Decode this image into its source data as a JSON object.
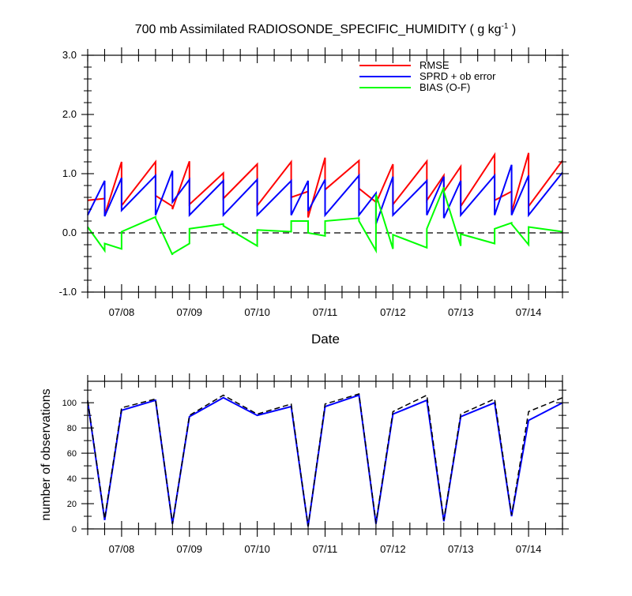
{
  "chart_data": [
    {
      "type": "line",
      "title": "700 mb Assimilated RADIOSONDE_SPECIFIC_HUMIDITY ( g kg",
      "title_sup": "-1",
      "title_end": " )",
      "xlabel": "Date",
      "ylabel": "",
      "xlim": [
        "07/07 12:00",
        "07/14 12:00"
      ],
      "ylim": [
        -1.0,
        3.0
      ],
      "yticks": [
        "-1.0",
        "0.0",
        "1.0",
        "2.0",
        "3.0"
      ],
      "xticks": [
        "07/08",
        "07/09",
        "07/10",
        "07/11",
        "07/12",
        "07/13",
        "07/14"
      ],
      "zero_line": "dashed",
      "legend_position": "top-right",
      "series": [
        {
          "name": "RMSE",
          "color": "#ff0000",
          "points": [
            [
              "07/07 12:00",
              0.55
            ],
            [
              "07/07 18:00",
              0.58
            ],
            [
              "07/07 18:00",
              0.3
            ],
            [
              "07/08 00:00",
              1.2
            ],
            [
              "07/08 00:00",
              0.46
            ],
            [
              "07/08 12:00",
              1.2
            ],
            [
              "07/08 12:00",
              0.63
            ],
            [
              "07/08 18:00",
              0.45
            ],
            [
              "07/08 18:00",
              0.4
            ],
            [
              "07/09 00:00",
              1.21
            ],
            [
              "07/09 00:00",
              0.48
            ],
            [
              "07/09 12:00",
              1.01
            ],
            [
              "07/09 12:00",
              0.58
            ],
            [
              "07/10 00:00",
              1.16
            ],
            [
              "07/10 00:00",
              0.46
            ],
            [
              "07/10 12:00",
              1.2
            ],
            [
              "07/10 12:00",
              0.6
            ],
            [
              "07/10 18:00",
              0.7
            ],
            [
              "07/10 18:00",
              0.26
            ],
            [
              "07/11 00:00",
              1.27
            ],
            [
              "07/11 00:00",
              0.73
            ],
            [
              "07/11 12:00",
              1.22
            ],
            [
              "07/11 12:00",
              0.75
            ],
            [
              "07/11 18:00",
              0.52
            ],
            [
              "07/11 18:00",
              0.5
            ],
            [
              "07/12 00:00",
              1.16
            ],
            [
              "07/12 00:00",
              0.48
            ],
            [
              "07/12 12:00",
              1.21
            ],
            [
              "07/12 12:00",
              0.55
            ],
            [
              "07/12 18:00",
              0.97
            ],
            [
              "07/12 18:00",
              0.7
            ],
            [
              "07/13 00:00",
              1.12
            ],
            [
              "07/13 00:00",
              0.45
            ],
            [
              "07/13 12:00",
              1.32
            ],
            [
              "07/13 12:00",
              0.55
            ],
            [
              "07/13 18:00",
              0.7
            ],
            [
              "07/13 18:00",
              0.35
            ],
            [
              "07/14 00:00",
              1.35
            ],
            [
              "07/14 00:00",
              0.45
            ],
            [
              "07/14 12:00",
              1.22
            ]
          ]
        },
        {
          "name": "SPRD + ob error",
          "color": "#0000ff",
          "points": [
            [
              "07/07 12:00",
              0.3
            ],
            [
              "07/07 18:00",
              0.88
            ],
            [
              "07/07 18:00",
              0.28
            ],
            [
              "07/08 00:00",
              0.93
            ],
            [
              "07/08 00:00",
              0.38
            ],
            [
              "07/08 12:00",
              0.97
            ],
            [
              "07/08 12:00",
              0.3
            ],
            [
              "07/08 18:00",
              1.05
            ],
            [
              "07/08 18:00",
              0.52
            ],
            [
              "07/09 00:00",
              0.9
            ],
            [
              "07/09 00:00",
              0.3
            ],
            [
              "07/09 12:00",
              0.88
            ],
            [
              "07/09 12:00",
              0.3
            ],
            [
              "07/10 00:00",
              0.9
            ],
            [
              "07/10 00:00",
              0.3
            ],
            [
              "07/10 12:00",
              0.88
            ],
            [
              "07/10 12:00",
              0.3
            ],
            [
              "07/10 18:00",
              0.88
            ],
            [
              "07/10 18:00",
              0.37
            ],
            [
              "07/11 00:00",
              0.9
            ],
            [
              "07/11 00:00",
              0.3
            ],
            [
              "07/11 12:00",
              0.97
            ],
            [
              "07/11 12:00",
              0.3
            ],
            [
              "07/11 18:00",
              0.67
            ],
            [
              "07/11 18:00",
              0.15
            ],
            [
              "07/12 00:00",
              0.95
            ],
            [
              "07/12 00:00",
              0.3
            ],
            [
              "07/12 12:00",
              0.88
            ],
            [
              "07/12 12:00",
              0.3
            ],
            [
              "07/12 18:00",
              0.95
            ],
            [
              "07/12 18:00",
              0.25
            ],
            [
              "07/13 00:00",
              0.88
            ],
            [
              "07/13 00:00",
              0.3
            ],
            [
              "07/13 12:00",
              0.97
            ],
            [
              "07/13 12:00",
              0.3
            ],
            [
              "07/13 18:00",
              1.15
            ],
            [
              "07/13 18:00",
              0.3
            ],
            [
              "07/14 00:00",
              0.97
            ],
            [
              "07/14 00:00",
              0.3
            ],
            [
              "07/14 12:00",
              1.02
            ]
          ]
        },
        {
          "name": "BIAS (O-F)",
          "color": "#00ff00",
          "points": [
            [
              "07/07 12:00",
              0.1
            ],
            [
              "07/07 18:00",
              -0.3
            ],
            [
              "07/07 18:00",
              -0.18
            ],
            [
              "07/08 00:00",
              -0.27
            ],
            [
              "07/08 00:00",
              0.02
            ],
            [
              "07/08 12:00",
              0.27
            ],
            [
              "07/08 12:00",
              0.25
            ],
            [
              "07/08 18:00",
              -0.37
            ],
            [
              "07/08 18:00",
              -0.35
            ],
            [
              "07/09 00:00",
              -0.18
            ],
            [
              "07/09 00:00",
              0.07
            ],
            [
              "07/09 12:00",
              0.15
            ],
            [
              "07/09 12:00",
              0.12
            ],
            [
              "07/10 00:00",
              -0.22
            ],
            [
              "07/10 00:00",
              0.05
            ],
            [
              "07/10 12:00",
              0.02
            ],
            [
              "07/10 12:00",
              0.2
            ],
            [
              "07/10 18:00",
              0.2
            ],
            [
              "07/10 18:00",
              0.0
            ],
            [
              "07/11 00:00",
              -0.05
            ],
            [
              "07/11 00:00",
              0.2
            ],
            [
              "07/11 12:00",
              0.25
            ],
            [
              "07/11 12:00",
              0.2
            ],
            [
              "07/11 18:00",
              -0.3
            ],
            [
              "07/11 18:00",
              0.65
            ],
            [
              "07/12 00:00",
              -0.27
            ],
            [
              "07/12 00:00",
              -0.03
            ],
            [
              "07/12 12:00",
              -0.25
            ],
            [
              "07/12 12:00",
              0.07
            ],
            [
              "07/12 18:00",
              0.77
            ],
            [
              "07/12 18:00",
              0.7
            ],
            [
              "07/13 00:00",
              -0.22
            ],
            [
              "07/13 00:00",
              -0.02
            ],
            [
              "07/13 12:00",
              -0.18
            ],
            [
              "07/13 12:00",
              0.07
            ],
            [
              "07/13 18:00",
              0.17
            ],
            [
              "07/13 18:00",
              0.15
            ],
            [
              "07/14 00:00",
              -0.2
            ],
            [
              "07/14 00:00",
              0.1
            ],
            [
              "07/14 12:00",
              0.02
            ]
          ]
        }
      ]
    },
    {
      "type": "line",
      "title": "",
      "xlabel": "",
      "ylabel": "number of observations",
      "xlim": [
        "07/07 12:00",
        "07/14 12:00"
      ],
      "ylim": [
        0,
        117
      ],
      "yticks": [
        "0",
        "20",
        "40",
        "60",
        "80",
        "100"
      ],
      "xticks": [
        "07/08",
        "07/09",
        "07/10",
        "07/11",
        "07/12",
        "07/13",
        "07/14"
      ],
      "series": [
        {
          "color": "#0000ff",
          "style": "solid",
          "points": [
            [
              "07/07 12:00",
              101
            ],
            [
              "07/07 18:00",
              7
            ],
            [
              "07/08 00:00",
              94
            ],
            [
              "07/08 12:00",
              102
            ],
            [
              "07/08 18:00",
              4
            ],
            [
              "07/09 00:00",
              89
            ],
            [
              "07/09 12:00",
              104
            ],
            [
              "07/10 00:00",
              90
            ],
            [
              "07/10 12:00",
              97
            ],
            [
              "07/10 18:00",
              2
            ],
            [
              "07/11 00:00",
              97
            ],
            [
              "07/11 12:00",
              106
            ],
            [
              "07/11 18:00",
              4
            ],
            [
              "07/12 00:00",
              91
            ],
            [
              "07/12 12:00",
              102
            ],
            [
              "07/12 18:00",
              6
            ],
            [
              "07/13 00:00",
              89
            ],
            [
              "07/13 12:00",
              100
            ],
            [
              "07/13 18:00",
              10
            ],
            [
              "07/14 00:00",
              86
            ],
            [
              "07/14 12:00",
              100
            ]
          ]
        },
        {
          "color": "#000000",
          "style": "dashed",
          "points": [
            [
              "07/07 12:00",
              102
            ],
            [
              "07/07 18:00",
              8
            ],
            [
              "07/08 00:00",
              96
            ],
            [
              "07/08 12:00",
              103
            ],
            [
              "07/08 18:00",
              4
            ],
            [
              "07/09 00:00",
              90
            ],
            [
              "07/09 12:00",
              106
            ],
            [
              "07/10 00:00",
              91
            ],
            [
              "07/10 12:00",
              99
            ],
            [
              "07/10 18:00",
              2
            ],
            [
              "07/11 00:00",
              99
            ],
            [
              "07/11 12:00",
              107
            ],
            [
              "07/11 18:00",
              5
            ],
            [
              "07/12 00:00",
              93
            ],
            [
              "07/12 12:00",
              106
            ],
            [
              "07/12 18:00",
              7
            ],
            [
              "07/13 00:00",
              91
            ],
            [
              "07/13 12:00",
              103
            ],
            [
              "07/13 18:00",
              11
            ],
            [
              "07/14 00:00",
              93
            ],
            [
              "07/14 12:00",
              104
            ]
          ]
        }
      ]
    }
  ]
}
